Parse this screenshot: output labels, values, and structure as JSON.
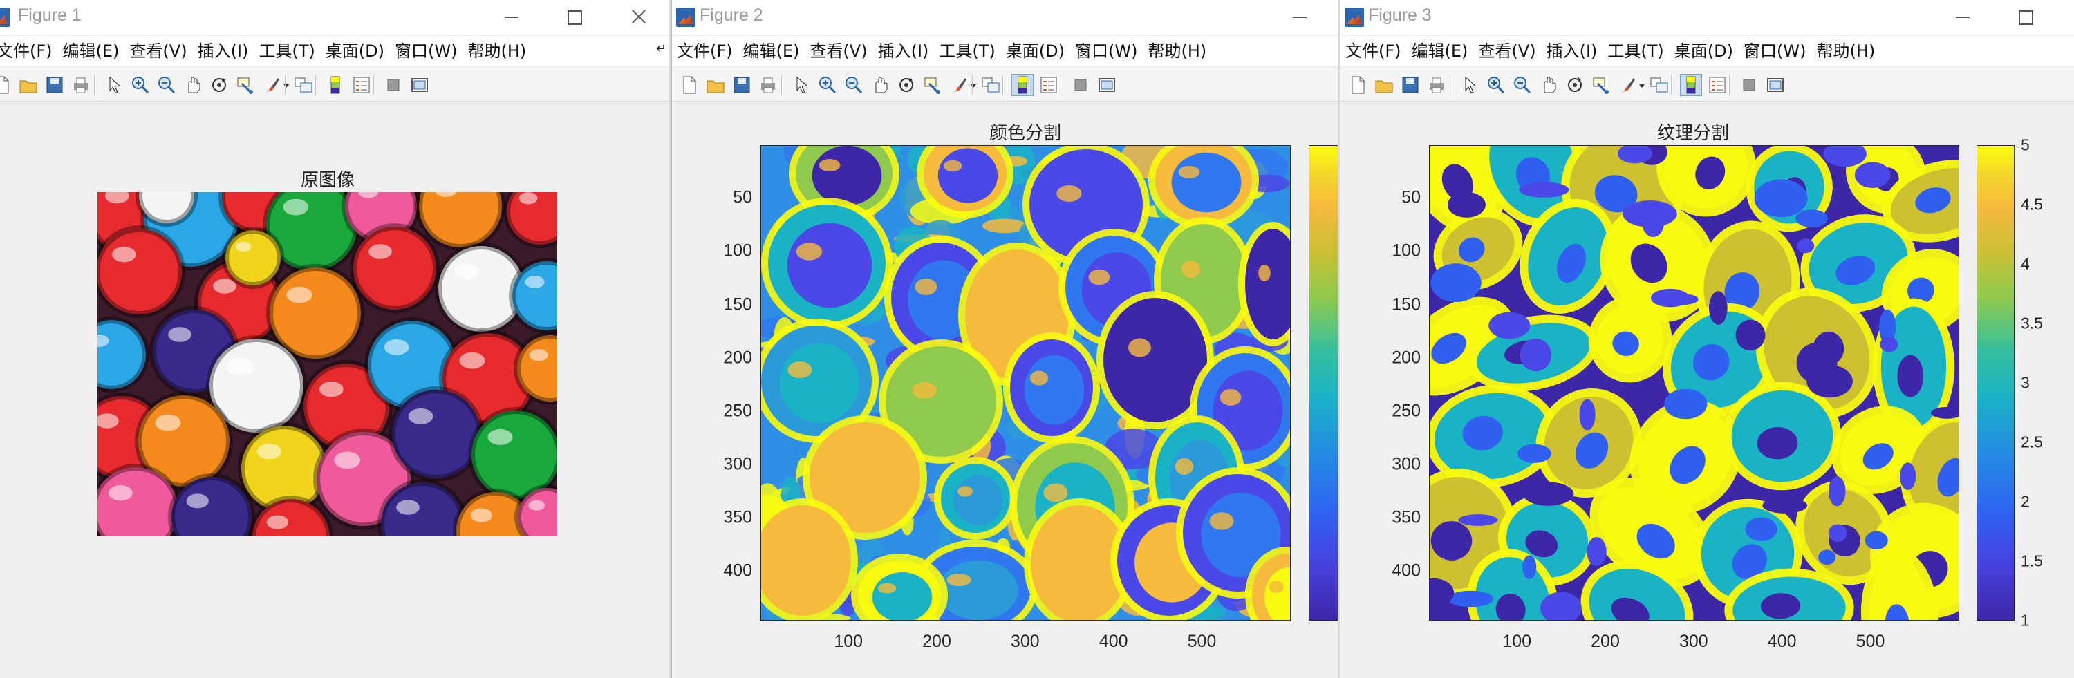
{
  "menu": [
    "文件(F)",
    "编辑(E)",
    "查看(V)",
    "插入(I)",
    "工具(T)",
    "桌面(D)",
    "窗口(W)",
    "帮助(H)"
  ],
  "toolbar_icons": [
    "new-file-icon",
    "open-folder-icon",
    "save-icon",
    "print-icon",
    "pointer-icon",
    "zoom-in-icon",
    "zoom-out-icon",
    "pan-hand-icon",
    "rotate-3d-icon",
    "data-cursor-icon",
    "brush-icon",
    "link-plot-icon",
    "colorbar-icon",
    "legend-icon",
    "hide-plot-tools-icon",
    "show-plot-tools-icon"
  ],
  "colormap": "parula",
  "windows": [
    {
      "title": "Figure 1",
      "plot_title": "原图像",
      "content": "image",
      "image_description": "candy gumballs"
    },
    {
      "title": "Figure 2",
      "plot_title": "颜色分割",
      "content": "label-map",
      "y_ticks": [
        "50",
        "100",
        "150",
        "200",
        "250",
        "300",
        "350",
        "400"
      ],
      "x_ticks": [
        "100",
        "200",
        "300",
        "400",
        "500"
      ],
      "colorbar_ticks": []
    },
    {
      "title": "Figure 3",
      "plot_title": "纹理分割",
      "content": "label-map",
      "y_ticks": [
        "50",
        "100",
        "150",
        "200",
        "250",
        "300",
        "350",
        "400"
      ],
      "x_ticks": [
        "100",
        "200",
        "300",
        "400",
        "500"
      ],
      "colorbar_ticks": [
        "5",
        "4.5",
        "4",
        "3.5",
        "3",
        "2.5",
        "2",
        "1.5",
        "1"
      ]
    }
  ],
  "colors": {
    "parula_dark": "#3e26a8",
    "parula_blue": "#2f60f2",
    "parula_cyan": "#1ab2c5",
    "parula_green": "#8fca4d",
    "parula_orange": "#f6ba3d",
    "parula_yellow": "#f9fb0e"
  }
}
